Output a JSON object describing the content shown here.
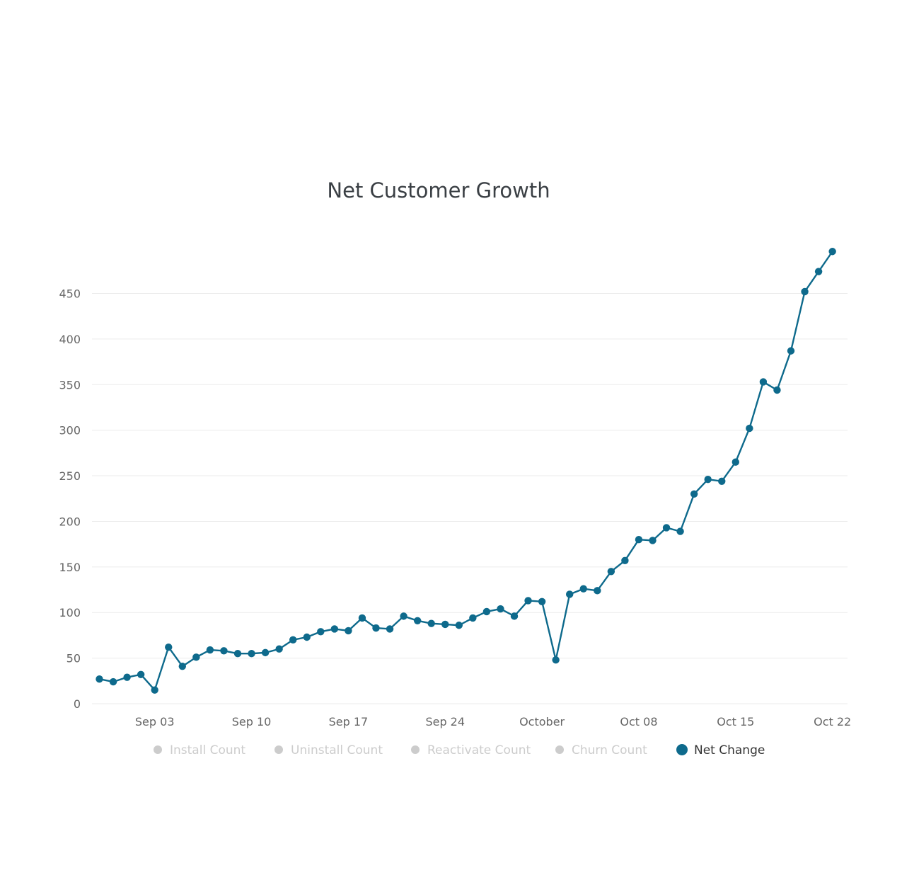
{
  "chart_data": {
    "type": "line",
    "title": "Net Customer Growth",
    "xlabel": "",
    "ylabel": "",
    "ylim": [
      0,
      500
    ],
    "yticks": [
      0,
      50,
      100,
      150,
      200,
      250,
      300,
      350,
      400,
      450
    ],
    "xtick_labels": [
      {
        "label": "Sep 03",
        "index": 4
      },
      {
        "label": "Sep 10",
        "index": 11
      },
      {
        "label": "Sep 17",
        "index": 18
      },
      {
        "label": "Sep 24",
        "index": 25
      },
      {
        "label": "October",
        "index": 32
      },
      {
        "label": "Oct 08",
        "index": 39
      },
      {
        "label": "Oct 15",
        "index": 46
      },
      {
        "label": "Oct 22",
        "index": 53
      }
    ],
    "x": [
      "Aug 30",
      "Aug 31",
      "Sep 01",
      "Sep 02",
      "Sep 03",
      "Sep 04",
      "Sep 05",
      "Sep 06",
      "Sep 07",
      "Sep 08",
      "Sep 09",
      "Sep 10",
      "Sep 11",
      "Sep 12",
      "Sep 13",
      "Sep 14",
      "Sep 15",
      "Sep 16",
      "Sep 17",
      "Sep 18",
      "Sep 19",
      "Sep 20",
      "Sep 21",
      "Sep 22",
      "Sep 23",
      "Sep 24",
      "Sep 25",
      "Sep 26",
      "Sep 27",
      "Sep 28",
      "Sep 29",
      "Sep 30",
      "Oct 01",
      "Oct 02",
      "Oct 03",
      "Oct 04",
      "Oct 05",
      "Oct 06",
      "Oct 07",
      "Oct 08",
      "Oct 09",
      "Oct 10",
      "Oct 11",
      "Oct 12",
      "Oct 13",
      "Oct 14",
      "Oct 15",
      "Oct 16",
      "Oct 17",
      "Oct 18",
      "Oct 19",
      "Oct 20",
      "Oct 21",
      "Oct 22"
    ],
    "series": [
      {
        "name": "Net Change",
        "color": "#0e6a8c",
        "values": [
          27,
          24,
          29,
          32,
          15,
          62,
          41,
          51,
          59,
          58,
          55,
          55,
          56,
          60,
          70,
          73,
          79,
          82,
          80,
          94,
          83,
          82,
          96,
          91,
          88,
          87,
          86,
          94,
          101,
          104,
          96,
          113,
          112,
          48,
          120,
          126,
          124,
          145,
          157,
          180,
          179,
          193,
          189,
          230,
          246,
          244,
          265,
          302,
          353,
          344,
          387,
          452,
          474,
          496
        ]
      }
    ],
    "legend": [
      {
        "label": "Install Count",
        "active": false
      },
      {
        "label": "Uninstall Count",
        "active": false
      },
      {
        "label": "Reactivate Count",
        "active": false
      },
      {
        "label": "Churn Count",
        "active": false
      },
      {
        "label": "Net Change",
        "active": true
      }
    ],
    "colors": {
      "series": "#0e6a8c",
      "legend_inactive": "#cccccc",
      "legend_active_text": "#333333",
      "grid": "#ebebeb"
    }
  }
}
